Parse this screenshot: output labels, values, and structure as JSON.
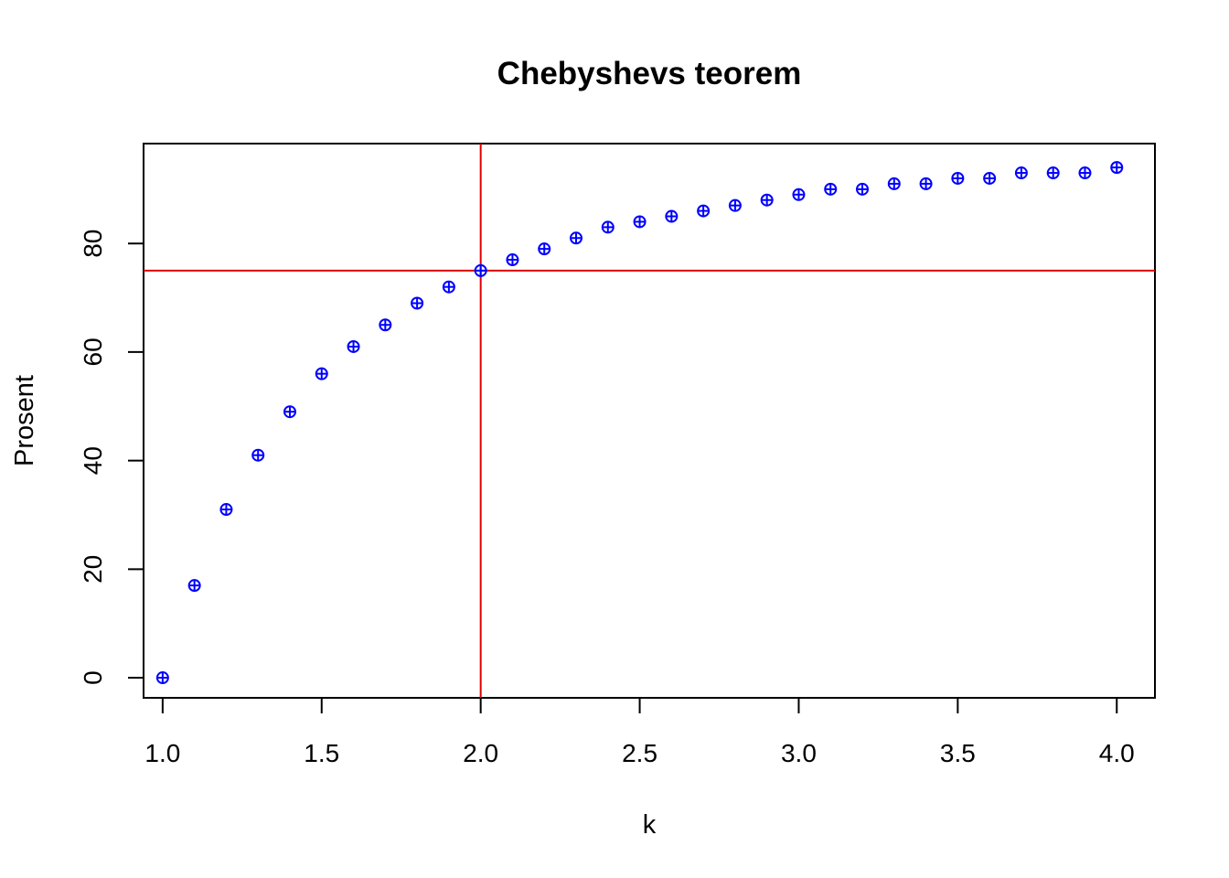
{
  "chart_data": {
    "type": "scatter",
    "title": "Chebyshevs teorem",
    "xlabel": "k",
    "ylabel": "Prosent",
    "xlim": [
      0.94,
      4.12
    ],
    "ylim": [
      -3.7,
      98.4
    ],
    "x_ticks": [
      "1.0",
      "1.5",
      "2.0",
      "2.5",
      "3.0",
      "3.5",
      "4.0"
    ],
    "y_ticks": [
      "0",
      "20",
      "40",
      "60",
      "80"
    ],
    "grid": false,
    "legend": "none",
    "point_color": "#0000ff",
    "reference_lines": {
      "color": "#dd0000",
      "vertical_x": 2.0,
      "horizontal_y": 75
    },
    "points": {
      "x": [
        1.0,
        1.1,
        1.2,
        1.3,
        1.4,
        1.5,
        1.6,
        1.7,
        1.8,
        1.9,
        2.0,
        2.1,
        2.2,
        2.3,
        2.4,
        2.5,
        2.6,
        2.7,
        2.8,
        2.9,
        3.0,
        3.1,
        3.2,
        3.3,
        3.4,
        3.5,
        3.6,
        3.7,
        3.8,
        3.9,
        4.0
      ],
      "y": [
        0,
        17,
        31,
        41,
        49,
        56,
        61,
        65,
        69,
        72,
        75,
        77,
        79,
        81,
        83,
        84,
        85,
        86,
        87,
        88,
        89,
        90,
        90,
        91,
        91,
        92,
        92,
        93,
        93,
        93,
        94
      ]
    }
  }
}
